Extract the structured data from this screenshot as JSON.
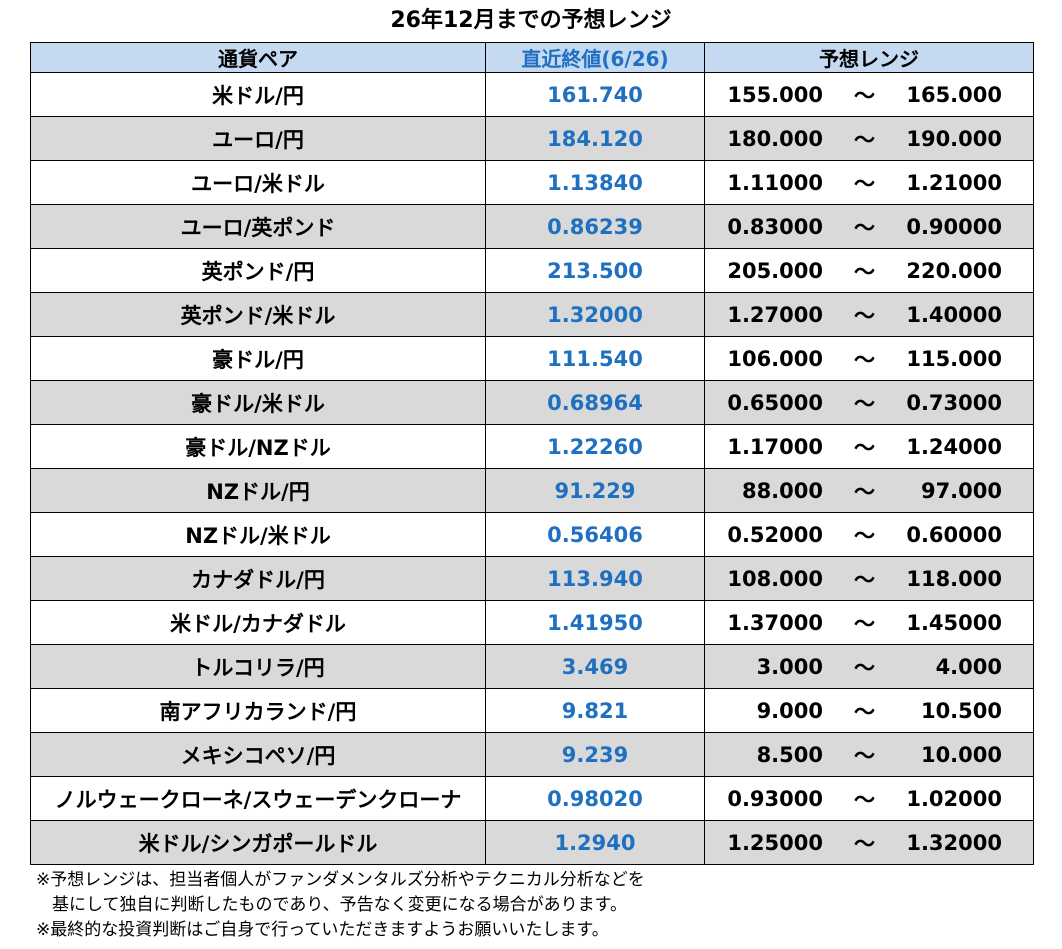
{
  "title": "26年12月までの予想レンジ",
  "headers": {
    "pair": "通貨ペア",
    "last": "直近終値(6/26)",
    "range": "予想レンジ"
  },
  "tilde": "～",
  "rows": [
    {
      "pair": "米ドル/円",
      "last": "161.740",
      "low": "155.000",
      "high": "165.000"
    },
    {
      "pair": "ユーロ/円",
      "last": "184.120",
      "low": "180.000",
      "high": "190.000"
    },
    {
      "pair": "ユーロ/米ドル",
      "last": "1.13840",
      "low": "1.11000",
      "high": "1.21000"
    },
    {
      "pair": "ユーロ/英ポンド",
      "last": "0.86239",
      "low": "0.83000",
      "high": "0.90000"
    },
    {
      "pair": "英ポンド/円",
      "last": "213.500",
      "low": "205.000",
      "high": "220.000"
    },
    {
      "pair": "英ポンド/米ドル",
      "last": "1.32000",
      "low": "1.27000",
      "high": "1.40000"
    },
    {
      "pair": "豪ドル/円",
      "last": "111.540",
      "low": "106.000",
      "high": "115.000"
    },
    {
      "pair": "豪ドル/米ドル",
      "last": "0.68964",
      "low": "0.65000",
      "high": "0.73000"
    },
    {
      "pair": "豪ドル/NZドル",
      "last": "1.22260",
      "low": "1.17000",
      "high": "1.24000"
    },
    {
      "pair": "NZドル/円",
      "last": "91.229",
      "low": "88.000",
      "high": "97.000"
    },
    {
      "pair": "NZドル/米ドル",
      "last": "0.56406",
      "low": "0.52000",
      "high": "0.60000"
    },
    {
      "pair": "カナダドル/円",
      "last": "113.940",
      "low": "108.000",
      "high": "118.000"
    },
    {
      "pair": "米ドル/カナダドル",
      "last": "1.41950",
      "low": "1.37000",
      "high": "1.45000"
    },
    {
      "pair": "トルコリラ/円",
      "last": "3.469",
      "low": "3.000",
      "high": "4.000"
    },
    {
      "pair": "南アフリカランド/円",
      "last": "9.821",
      "low": "9.000",
      "high": "10.500"
    },
    {
      "pair": "メキシコペソ/円",
      "last": "9.239",
      "low": "8.500",
      "high": "10.000"
    },
    {
      "pair": "ノルウェークローネ/スウェーデンクローナ",
      "last": "0.98020",
      "low": "0.93000",
      "high": "1.02000"
    },
    {
      "pair": "米ドル/シンガポールドル",
      "last": "1.2940",
      "low": "1.25000",
      "high": "1.32000"
    }
  ],
  "notes": [
    "※予想レンジは、担当者個人がファンダメンタルズ分析やテクニカル分析などを",
    "基にして独自に判断したものであり、予告なく変更になる場合があります。",
    "※最終的な投資判断はご自身で行っていただきますようお願いいたします。"
  ],
  "colors": {
    "header_bg": "#c5d9f1",
    "last_price_text": "#1f70c1",
    "stripe_bg": "#d9d9d9"
  }
}
